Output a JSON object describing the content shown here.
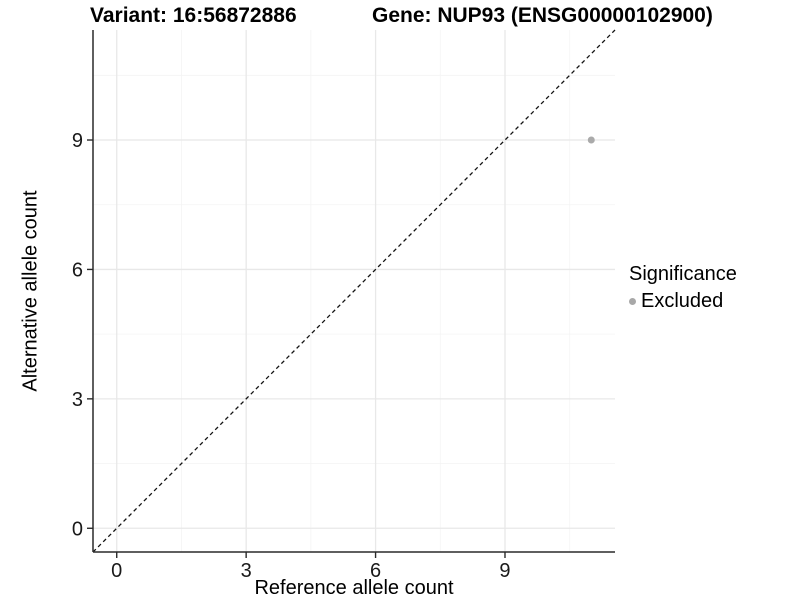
{
  "header": {
    "variant_title": "Variant: 16:56872886",
    "gene_title": "Gene: NUP93 (ENSG00000102900)"
  },
  "chart_data": {
    "type": "scatter",
    "title": "Variant: 16:56872886 / Gene: NUP93 (ENSG00000102900)",
    "xlabel": "Reference allele count",
    "ylabel": "Alternative allele count",
    "xlim": [
      -0.55,
      11.55
    ],
    "ylim": [
      -0.55,
      11.55
    ],
    "x_ticks": [
      0,
      3,
      6,
      9
    ],
    "y_ticks": [
      0,
      3,
      6,
      9
    ],
    "x_minor_ticks": [
      1.5,
      4.5,
      7.5,
      10.5
    ],
    "y_minor_ticks": [
      1.5,
      4.5,
      7.5,
      10.5
    ],
    "grid": true,
    "identity_line": {
      "style": "dashed",
      "from": [
        -0.55,
        -0.55
      ],
      "to": [
        11.55,
        11.55
      ],
      "color": "#141414"
    },
    "series": [
      {
        "name": "Excluded",
        "color": "#aaaaaa",
        "points": [
          [
            11,
            9
          ]
        ]
      }
    ],
    "legend": {
      "title": "Significance",
      "position": "right",
      "entries": [
        {
          "label": "Excluded",
          "color": "#a8a8a8"
        }
      ]
    },
    "colors": {
      "background": "#ffffff",
      "grid_major": "#e8e8e8",
      "grid_minor": "#f4f4f4",
      "axis_line": "#2a2a2a",
      "tick_text": "#1a1a1a"
    }
  }
}
